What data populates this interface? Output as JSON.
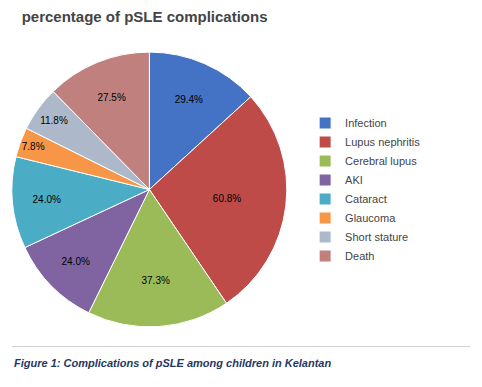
{
  "chart_data": {
    "type": "pie",
    "title": "percentage of pSLE complications",
    "caption": {
      "text": "Figure 1: Complications of pSLE among children in Kelantan",
      "color": "#1f3864"
    },
    "categories": [
      "Infection",
      "Lupus nephritis",
      "Cerebral lupus",
      "AKI",
      "Cataract",
      "Glaucoma",
      "Short stature",
      "Death"
    ],
    "values": [
      29.4,
      60.8,
      37.3,
      24.0,
      24.0,
      7.8,
      11.8,
      27.5
    ],
    "value_labels": [
      "29.4%",
      "60.8%",
      "37.3%",
      "24.0%",
      "24.0%",
      "7.8%",
      "11.8%",
      "27.5%"
    ],
    "colors": [
      "#4472c4",
      "#be4b48",
      "#9bbb59",
      "#8064a2",
      "#4bacc6",
      "#f79646",
      "#adb9ca",
      "#c0817e"
    ],
    "data_labels": true,
    "legend": "right"
  }
}
